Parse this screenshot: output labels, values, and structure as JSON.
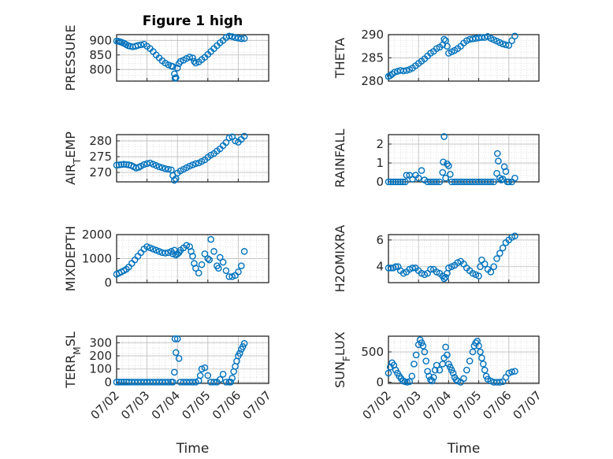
{
  "colors": {
    "marker": "#0072BD",
    "axis": "#262626",
    "grid": "#d9d9d9"
  },
  "chart_data": [
    {
      "type": "scatter",
      "title": "Figure 1 high",
      "ylabel": "PRESSURE",
      "xlabel": "",
      "ylim": [
        760,
        920
      ],
      "yticks": [
        800,
        850,
        900
      ],
      "xlim": [
        0,
        5
      ],
      "marker": "circle-open",
      "grid": true,
      "x": [
        0.0,
        0.06,
        0.12,
        0.18,
        0.25,
        0.31,
        0.38,
        0.45,
        0.53,
        0.62,
        0.7,
        0.8,
        0.9,
        1.0,
        1.1,
        1.2,
        1.3,
        1.4,
        1.5,
        1.6,
        1.7,
        1.8,
        1.85,
        1.9,
        1.92,
        1.95,
        2.0,
        2.05,
        2.1,
        2.2,
        2.3,
        2.4,
        2.5,
        2.55,
        2.6,
        2.7,
        2.8,
        2.9,
        3.0,
        3.1,
        3.2,
        3.3,
        3.4,
        3.5,
        3.6,
        3.7,
        3.8,
        3.9,
        4.0,
        4.1,
        4.2
      ],
      "y": [
        898,
        897,
        895,
        893,
        890,
        886,
        882,
        880,
        878,
        880,
        883,
        885,
        887,
        880,
        872,
        862,
        850,
        840,
        830,
        822,
        816,
        812,
        810,
        785,
        770,
        772,
        805,
        820,
        828,
        832,
        838,
        843,
        840,
        828,
        822,
        826,
        834,
        842,
        852,
        862,
        872,
        882,
        892,
        900,
        910,
        915,
        913,
        910,
        908,
        906,
        907
      ]
    },
    {
      "type": "scatter",
      "title": "",
      "ylabel": "THETA",
      "xlabel": "",
      "ylim": [
        280,
        290
      ],
      "yticks": [
        280,
        285,
        290
      ],
      "xlim": [
        0,
        5
      ],
      "marker": "circle-open",
      "grid": true,
      "x": [
        0.0,
        0.06,
        0.12,
        0.2,
        0.3,
        0.4,
        0.5,
        0.6,
        0.7,
        0.8,
        0.9,
        1.0,
        1.1,
        1.2,
        1.3,
        1.4,
        1.5,
        1.6,
        1.7,
        1.8,
        1.85,
        1.9,
        1.95,
        2.0,
        2.1,
        2.2,
        2.3,
        2.4,
        2.5,
        2.6,
        2.7,
        2.8,
        2.9,
        3.0,
        3.1,
        3.2,
        3.3,
        3.4,
        3.5,
        3.6,
        3.7,
        3.8,
        3.9,
        4.0,
        4.1,
        4.2
      ],
      "y": [
        281.0,
        281.2,
        281.5,
        281.9,
        282.1,
        282.3,
        282.2,
        282.3,
        282.5,
        282.8,
        283.3,
        283.8,
        284.3,
        284.8,
        285.4,
        286.0,
        286.4,
        287.0,
        287.3,
        287.8,
        289.0,
        288.7,
        287.5,
        286.0,
        286.3,
        286.6,
        287.0,
        287.5,
        288.2,
        288.7,
        289.0,
        289.1,
        289.2,
        289.3,
        289.4,
        289.4,
        289.6,
        289.2,
        288.9,
        288.6,
        288.3,
        288.0,
        287.8,
        287.7,
        288.7,
        289.7
      ]
    },
    {
      "type": "scatter",
      "title": "",
      "ylabel": "AIR_TEMP",
      "xlabel": "",
      "ylim": [
        267,
        282
      ],
      "yticks": [
        270,
        275,
        280
      ],
      "xlim": [
        0,
        5
      ],
      "marker": "circle-open",
      "grid": true,
      "x": [
        0.0,
        0.08,
        0.16,
        0.24,
        0.32,
        0.4,
        0.48,
        0.56,
        0.64,
        0.72,
        0.8,
        0.9,
        1.0,
        1.1,
        1.2,
        1.3,
        1.4,
        1.5,
        1.6,
        1.7,
        1.8,
        1.85,
        1.9,
        1.95,
        2.0,
        2.1,
        2.2,
        2.3,
        2.4,
        2.5,
        2.6,
        2.7,
        2.8,
        2.9,
        3.0,
        3.1,
        3.2,
        3.3,
        3.4,
        3.5,
        3.6,
        3.7,
        3.8,
        3.9,
        4.0,
        4.1,
        4.2
      ],
      "y": [
        272.3,
        272.4,
        272.5,
        272.6,
        272.5,
        272.4,
        272.2,
        271.8,
        271.4,
        271.6,
        272.0,
        272.5,
        272.8,
        273.0,
        272.6,
        272.2,
        271.8,
        271.5,
        271.2,
        271.0,
        270.8,
        269.0,
        267.5,
        268.0,
        269.8,
        270.5,
        271.0,
        271.5,
        272.0,
        272.4,
        272.8,
        273.0,
        273.5,
        274.0,
        274.8,
        275.5,
        276.0,
        276.8,
        277.5,
        278.5,
        279.5,
        281.0,
        281.3,
        280.0,
        279.6,
        280.5,
        281.5
      ]
    },
    {
      "type": "scatter",
      "title": "",
      "ylabel": "RAINFALL",
      "xlabel": "",
      "ylim": [
        0,
        2.5
      ],
      "yticks": [
        0,
        1,
        2
      ],
      "xlim": [
        0,
        5
      ],
      "marker": "circle-open",
      "grid": true,
      "x": [
        0.0,
        0.08,
        0.16,
        0.24,
        0.32,
        0.4,
        0.48,
        0.56,
        0.6,
        0.7,
        0.8,
        0.9,
        1.0,
        1.1,
        1.2,
        1.3,
        1.4,
        1.5,
        1.6,
        1.7,
        1.8,
        1.82,
        1.85,
        1.9,
        1.95,
        2.0,
        2.05,
        2.1,
        2.2,
        2.3,
        2.4,
        2.5,
        2.6,
        2.7,
        2.8,
        2.9,
        3.0,
        3.1,
        3.2,
        3.3,
        3.4,
        3.5,
        3.6,
        3.62,
        3.65,
        3.7,
        3.75,
        3.8,
        3.85,
        3.9,
        3.95,
        4.0,
        4.1,
        4.2
      ],
      "y": [
        0,
        0,
        0,
        0,
        0,
        0,
        0,
        0,
        0.35,
        0.35,
        0.15,
        0.35,
        0.2,
        0.6,
        0.1,
        0,
        0,
        0,
        0,
        0,
        0.5,
        1.05,
        2.4,
        0.2,
        0.95,
        0.85,
        0.4,
        0,
        0,
        0,
        0,
        0,
        0,
        0,
        0,
        0,
        0,
        0,
        0,
        0,
        0,
        0,
        0.45,
        1.5,
        1.1,
        0.2,
        0.1,
        0.15,
        0.8,
        0.55,
        0,
        0,
        0,
        0.2
      ]
    },
    {
      "type": "scatter",
      "title": "",
      "ylabel": "MIXDEPTH",
      "xlabel": "",
      "ylim": [
        0,
        2000
      ],
      "yticks": [
        0,
        1000,
        2000
      ],
      "xlim": [
        0,
        5
      ],
      "marker": "circle-open",
      "grid": true,
      "x": [
        0.0,
        0.08,
        0.16,
        0.24,
        0.32,
        0.4,
        0.5,
        0.6,
        0.7,
        0.8,
        0.9,
        1.0,
        1.1,
        1.2,
        1.3,
        1.4,
        1.5,
        1.6,
        1.7,
        1.8,
        1.85,
        1.9,
        1.95,
        2.0,
        2.05,
        2.1,
        2.2,
        2.3,
        2.4,
        2.45,
        2.5,
        2.55,
        2.6,
        2.7,
        2.8,
        2.9,
        3.0,
        3.05,
        3.1,
        3.2,
        3.3,
        3.35,
        3.4,
        3.5,
        3.6,
        3.7,
        3.8,
        3.9,
        4.0,
        4.1,
        4.2
      ],
      "y": [
        350,
        400,
        450,
        500,
        560,
        650,
        800,
        950,
        1100,
        1250,
        1400,
        1500,
        1450,
        1400,
        1350,
        1300,
        1250,
        1230,
        1250,
        1300,
        1200,
        1350,
        1150,
        1200,
        1250,
        1350,
        1450,
        1550,
        1500,
        1300,
        1100,
        800,
        600,
        400,
        750,
        1200,
        1000,
        950,
        1800,
        1300,
        700,
        600,
        1050,
        850,
        500,
        250,
        250,
        300,
        450,
        700,
        1300
      ]
    },
    {
      "type": "scatter",
      "title": "",
      "ylabel": "H2OMIXRA",
      "xlabel": "",
      "ylim": [
        2.8,
        6.4
      ],
      "yticks": [
        4,
        6
      ],
      "xlim": [
        0,
        5
      ],
      "marker": "circle-open",
      "grid": true,
      "x": [
        0.0,
        0.08,
        0.16,
        0.24,
        0.32,
        0.4,
        0.5,
        0.6,
        0.7,
        0.8,
        0.9,
        1.0,
        1.1,
        1.2,
        1.3,
        1.4,
        1.5,
        1.6,
        1.7,
        1.8,
        1.85,
        1.9,
        1.95,
        2.0,
        2.1,
        2.2,
        2.3,
        2.4,
        2.5,
        2.6,
        2.7,
        2.8,
        2.9,
        3.0,
        3.05,
        3.1,
        3.2,
        3.3,
        3.4,
        3.5,
        3.6,
        3.7,
        3.8,
        3.9,
        4.0,
        4.1,
        4.2
      ],
      "y": [
        3.9,
        3.9,
        3.9,
        4.0,
        4.0,
        3.7,
        3.5,
        3.6,
        3.8,
        3.9,
        3.9,
        3.7,
        3.5,
        3.4,
        3.5,
        3.8,
        3.8,
        3.6,
        3.5,
        3.3,
        3.1,
        3.2,
        3.5,
        3.9,
        4.0,
        4.1,
        4.3,
        4.4,
        4.2,
        3.9,
        3.7,
        3.5,
        3.4,
        3.3,
        4.0,
        4.5,
        4.2,
        3.8,
        3.6,
        4.0,
        4.6,
        5.0,
        5.4,
        5.8,
        6.0,
        6.2,
        6.3
      ]
    },
    {
      "type": "scatter",
      "title": "",
      "ylabel": "TERR_MSL",
      "xlabel": "Time",
      "ylim": [
        -10,
        350
      ],
      "yticks": [
        0,
        100,
        200,
        300
      ],
      "xlim": [
        0,
        5
      ],
      "marker": "circle-open",
      "grid": true,
      "xticks": [
        "07/02",
        "07/03",
        "07/04",
        "07/05",
        "07/06",
        "07/07"
      ],
      "x": [
        0.0,
        0.08,
        0.16,
        0.24,
        0.32,
        0.4,
        0.5,
        0.6,
        0.7,
        0.8,
        0.9,
        1.0,
        1.1,
        1.2,
        1.3,
        1.4,
        1.5,
        1.6,
        1.7,
        1.8,
        1.85,
        1.9,
        1.92,
        1.95,
        2.0,
        2.05,
        2.1,
        2.2,
        2.3,
        2.4,
        2.5,
        2.6,
        2.7,
        2.75,
        2.8,
        2.9,
        3.0,
        3.1,
        3.2,
        3.3,
        3.4,
        3.5,
        3.6,
        3.7,
        3.75,
        3.8,
        3.85,
        3.9,
        3.95,
        4.0,
        4.05,
        4.1,
        4.15,
        4.2
      ],
      "y": [
        0,
        0,
        0,
        0,
        0,
        0,
        0,
        0,
        0,
        0,
        0,
        0,
        0,
        0,
        0,
        0,
        0,
        0,
        0,
        0,
        0,
        75,
        330,
        225,
        330,
        180,
        0,
        0,
        0,
        0,
        0,
        0,
        10,
        50,
        100,
        110,
        50,
        0,
        0,
        0,
        20,
        60,
        0,
        0,
        0,
        30,
        80,
        120,
        160,
        200,
        220,
        250,
        270,
        295
      ]
    },
    {
      "type": "scatter",
      "title": "",
      "ylabel": "SUN_FLUX",
      "xlabel": "Time",
      "ylim": [
        -20,
        760
      ],
      "yticks": [
        0,
        500
      ],
      "xlim": [
        0,
        5
      ],
      "marker": "circle-open",
      "grid": true,
      "xticks": [
        "07/02",
        "07/03",
        "07/04",
        "07/05",
        "07/06",
        "07/07"
      ],
      "x": [
        0.0,
        0.06,
        0.12,
        0.18,
        0.24,
        0.3,
        0.36,
        0.42,
        0.48,
        0.55,
        0.62,
        0.7,
        0.78,
        0.85,
        0.92,
        1.0,
        1.05,
        1.1,
        1.15,
        1.2,
        1.25,
        1.3,
        1.35,
        1.4,
        1.45,
        1.5,
        1.55,
        1.6,
        1.7,
        1.8,
        1.85,
        1.9,
        1.95,
        2.0,
        2.05,
        2.1,
        2.15,
        2.2,
        2.25,
        2.3,
        2.4,
        2.5,
        2.6,
        2.7,
        2.8,
        2.85,
        2.9,
        2.95,
        3.0,
        3.05,
        3.1,
        3.15,
        3.2,
        3.25,
        3.3,
        3.4,
        3.5,
        3.6,
        3.7,
        3.8,
        3.9,
        4.0,
        4.1,
        4.2
      ],
      "y": [
        150,
        250,
        320,
        280,
        200,
        150,
        100,
        60,
        20,
        10,
        0,
        10,
        100,
        300,
        450,
        620,
        700,
        650,
        600,
        500,
        350,
        180,
        100,
        40,
        20,
        80,
        200,
        280,
        200,
        300,
        400,
        580,
        450,
        300,
        250,
        200,
        150,
        80,
        40,
        20,
        0,
        60,
        200,
        350,
        500,
        600,
        650,
        680,
        600,
        500,
        400,
        300,
        200,
        100,
        50,
        20,
        0,
        0,
        0,
        10,
        80,
        150,
        170,
        180
      ]
    }
  ]
}
